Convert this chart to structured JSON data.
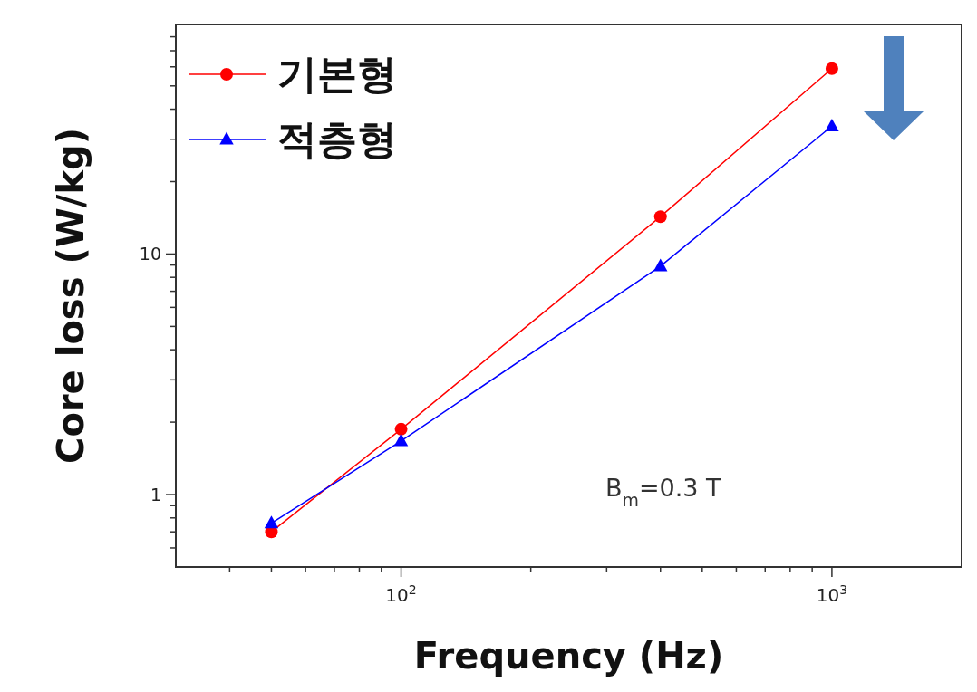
{
  "chart_data": {
    "type": "line",
    "xlabel": "Frequency (Hz)",
    "ylabel": "Core loss (W/kg)",
    "log": "xy",
    "x": [
      50,
      100,
      400,
      1000
    ],
    "series": [
      {
        "name": "기본형",
        "color": "#ff0000",
        "marker": "circle",
        "values": [
          0.7,
          1.87,
          14.3,
          59
        ]
      },
      {
        "name": "적층형",
        "color": "#0000ff",
        "marker": "triangle",
        "values": [
          0.76,
          1.67,
          8.9,
          34
        ]
      }
    ],
    "xlim": [
      30,
      2000
    ],
    "ylim": [
      0.5,
      90
    ],
    "xticks": [
      {
        "value": 100,
        "label": "10$^{2}$"
      },
      {
        "value": 1000,
        "label": "10$^{3}$"
      }
    ],
    "yticks": [
      1,
      10
    ],
    "legend": "top left",
    "line_style": "solid",
    "annotations": [
      "B$_{m}$=0.3 T"
    ]
  }
}
